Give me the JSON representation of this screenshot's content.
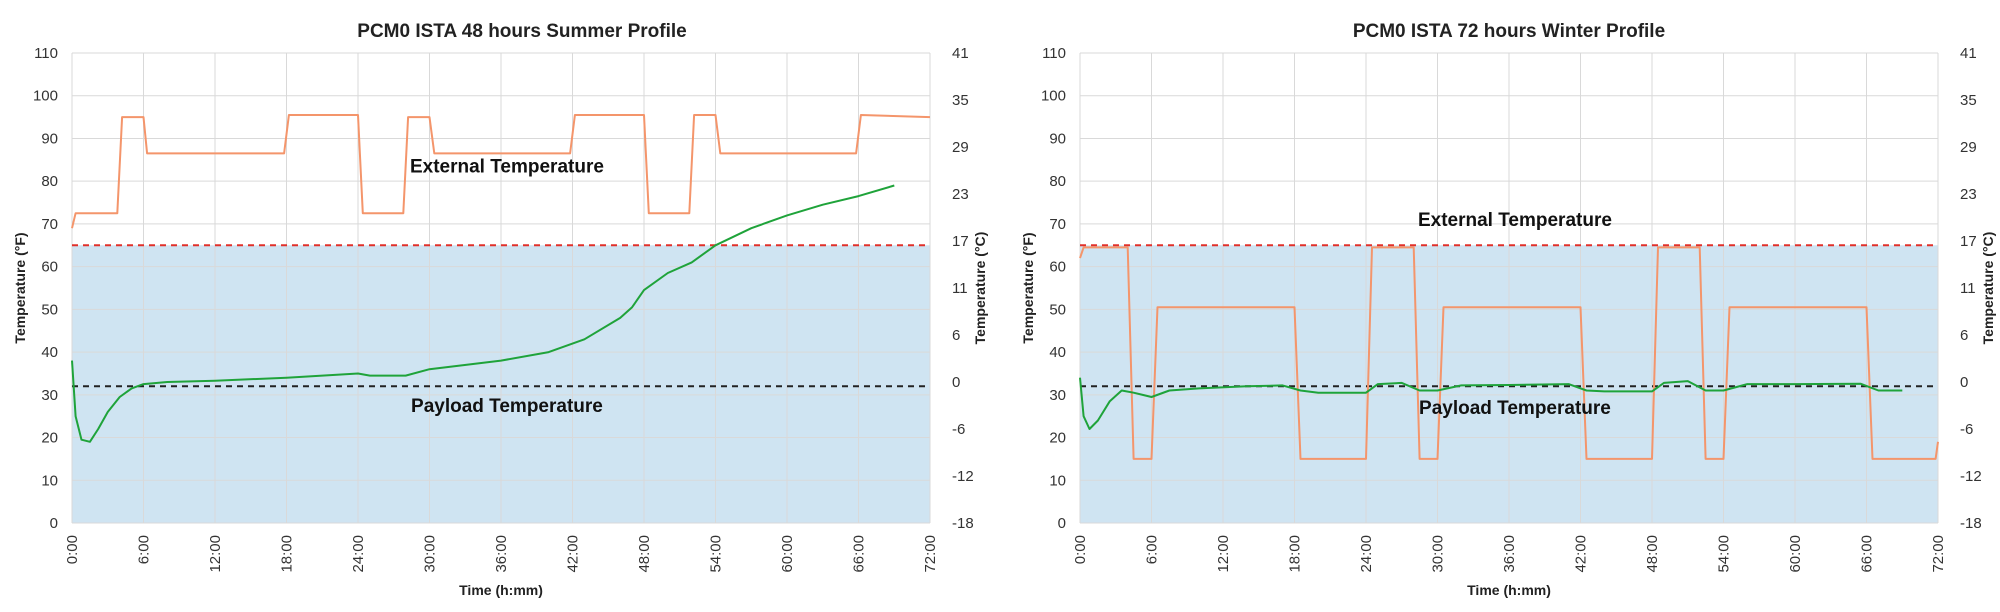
{
  "chart_data": [
    {
      "type": "line",
      "title": "PCM0 ISTA 48 hours Summer Profile",
      "xlabel": "Time (h:mm)",
      "ylabel": "Temperature (°F)",
      "y2label": "Temperature (°C)",
      "xlim": [
        0,
        72
      ],
      "ylim": [
        0,
        110
      ],
      "x_ticks": [
        "0:00",
        "6:00",
        "12:00",
        "18:00",
        "24:00",
        "30:00",
        "36:00",
        "42:00",
        "48:00",
        "54:00",
        "60:00",
        "66:00",
        "72:00"
      ],
      "y_ticks": [
        "0",
        "10",
        "20",
        "30",
        "40",
        "50",
        "60",
        "70",
        "80",
        "90",
        "100",
        "110"
      ],
      "y2_ticks": [
        "-18",
        "-12",
        "-6",
        "0",
        "6",
        "11",
        "17",
        "23",
        "29",
        "35",
        "41"
      ],
      "grid": true,
      "shaded_band": {
        "from": 0,
        "to": 65,
        "color": "#cfe4f2"
      },
      "reference_lines": [
        {
          "y": 65,
          "color": "#e0302a",
          "style": "dashed"
        },
        {
          "y": 32,
          "color": "#222222",
          "style": "dashed"
        }
      ],
      "annotations": [
        {
          "text": "External Temperature",
          "x": 36.5,
          "y": 82
        },
        {
          "text": "Payload Temperature",
          "x": 36.5,
          "y": 26
        }
      ],
      "series": [
        {
          "color": "#f4956b",
          "x": [
            0,
            0.3,
            3.8,
            4.2,
            6.0,
            6.3,
            17.8,
            18.2,
            24.0,
            24.4,
            27.8,
            28.2,
            30.0,
            30.4,
            41.8,
            42.2,
            48.0,
            48.4,
            51.8,
            52.2,
            54.0,
            54.4,
            65.8,
            66.2,
            72.0
          ],
          "y": [
            69,
            72.5,
            72.5,
            95,
            95,
            86.5,
            86.5,
            95.5,
            95.5,
            72.5,
            72.5,
            95,
            95,
            86.5,
            86.5,
            95.5,
            95.5,
            72.5,
            72.5,
            95.5,
            95.5,
            86.5,
            86.5,
            95.5,
            95
          ]
        },
        {
          "color": "#1fa33a",
          "x": [
            0,
            0.3,
            0.8,
            1.5,
            2.2,
            3.0,
            4.0,
            5.0,
            6.0,
            8.0,
            12.0,
            18.0,
            24.0,
            25.0,
            28.0,
            30.0,
            36.0,
            40.0,
            43.0,
            46.0,
            47.0,
            48.0,
            50.0,
            52.0,
            54.0,
            57.0,
            60.0,
            63.0,
            66.0,
            69.0
          ],
          "y": [
            38,
            25,
            19.5,
            19,
            22,
            26,
            29.5,
            31.5,
            32.5,
            33,
            33.3,
            34,
            35,
            34.5,
            34.5,
            36,
            38,
            40,
            43,
            48,
            50.5,
            54.5,
            58.5,
            61,
            65,
            69,
            72,
            74.5,
            76.5,
            79
          ]
        }
      ]
    },
    {
      "type": "line",
      "title": "PCM0 ISTA 72 hours Winter Profile",
      "xlabel": "Time (h:mm)",
      "ylabel": "Temperature (°F)",
      "y2label": "Temperature (°C)",
      "xlim": [
        0,
        72
      ],
      "ylim": [
        0,
        110
      ],
      "x_ticks": [
        "0:00",
        "6:00",
        "12:00",
        "18:00",
        "24:00",
        "30:00",
        "36:00",
        "42:00",
        "48:00",
        "54:00",
        "60:00",
        "66:00",
        "72:00"
      ],
      "y_ticks": [
        "0",
        "10",
        "20",
        "30",
        "40",
        "50",
        "60",
        "70",
        "80",
        "90",
        "100",
        "110"
      ],
      "y2_ticks": [
        "-18",
        "-12",
        "-6",
        "0",
        "6",
        "11",
        "17",
        "23",
        "29",
        "35",
        "41"
      ],
      "grid": true,
      "shaded_band": {
        "from": 0,
        "to": 65,
        "color": "#cfe4f2"
      },
      "reference_lines": [
        {
          "y": 65,
          "color": "#e0302a",
          "style": "dashed"
        },
        {
          "y": 32,
          "color": "#222222",
          "style": "dashed"
        }
      ],
      "annotations": [
        {
          "text": "External Temperature",
          "x": 36.5,
          "y": 69.5
        },
        {
          "text": "Payload Temperature",
          "x": 36.5,
          "y": 25.5
        }
      ],
      "series": [
        {
          "color": "#f4956b",
          "x": [
            0,
            0.3,
            4.0,
            4.5,
            6.0,
            6.5,
            18.0,
            18.5,
            24.0,
            24.5,
            28.0,
            28.5,
            30.0,
            30.5,
            42.0,
            42.5,
            48.0,
            48.5,
            52.0,
            52.5,
            54.0,
            54.5,
            66.0,
            66.5,
            71.8,
            72.0
          ],
          "y": [
            62,
            64.5,
            64.5,
            15,
            15,
            50.5,
            50.5,
            15,
            15,
            64.5,
            64.5,
            15,
            15,
            50.5,
            50.5,
            15,
            15,
            64.5,
            64.5,
            15,
            15,
            50.5,
            50.5,
            15,
            15,
            19
          ]
        },
        {
          "color": "#1fa33a",
          "x": [
            0,
            0.3,
            0.8,
            1.5,
            2.5,
            3.5,
            4.5,
            6.0,
            7.5,
            10.0,
            14.0,
            17.0,
            18.5,
            20.0,
            24.0,
            25.0,
            27.0,
            28.5,
            30.0,
            32.0,
            36.0,
            41.0,
            42.5,
            44.0,
            48.0,
            49.0,
            51.0,
            52.5,
            54.0,
            56.0,
            60.0,
            65.5,
            67.0,
            69.0
          ],
          "y": [
            34,
            25,
            22,
            24,
            28.5,
            31,
            30.5,
            29.5,
            31,
            31.5,
            32,
            32.2,
            31,
            30.5,
            30.5,
            32.5,
            32.8,
            31,
            31,
            32.2,
            32.3,
            32.5,
            31,
            30.8,
            30.8,
            32.8,
            33.2,
            31,
            31,
            32.5,
            32.5,
            32.6,
            31,
            31
          ]
        }
      ]
    }
  ]
}
